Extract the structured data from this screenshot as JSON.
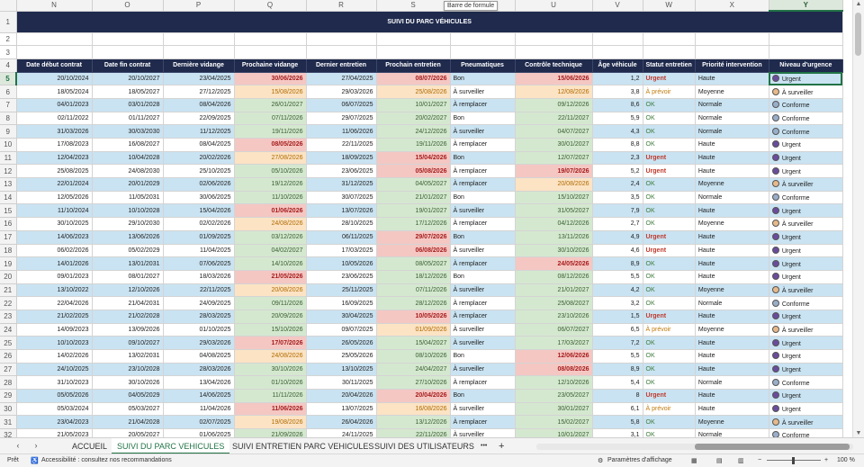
{
  "formula_tooltip": "Barre de formule",
  "columns": [
    "N",
    "O",
    "P",
    "Q",
    "R",
    "S",
    "T",
    "U",
    "V",
    "W",
    "X",
    "Y"
  ],
  "selected_column": "Y",
  "row_numbers": [
    1,
    2,
    3,
    4,
    5,
    6,
    7,
    8,
    9,
    10,
    11,
    12,
    13,
    14,
    15,
    16,
    17,
    18,
    19,
    20,
    21,
    22,
    23,
    24,
    25,
    26,
    27,
    28,
    29,
    30,
    31,
    32
  ],
  "selected_row": 5,
  "title": "SUIVI DU PARC VÉHICULES",
  "headers": [
    "Date début contrat",
    "Date fin contrat",
    "Dernière vidange",
    "Prochaine vidange",
    "Dernier entretien",
    "Prochain entretien",
    "Pneumatiques",
    "Contrôle technique",
    "Âge véhicule",
    "Statut entretien",
    "Priorité intervention",
    "Niveau d'urgence"
  ],
  "rows": [
    [
      "20/10/2024",
      "20/10/2027",
      "23/04/2025",
      "30/06/2026",
      "27/04/2025",
      "08/07/2026",
      "Bon",
      "15/06/2026",
      "1,2",
      "Urgent",
      "Haute",
      "Urgent"
    ],
    [
      "18/05/2024",
      "18/05/2027",
      "27/12/2025",
      "15/08/2026",
      "29/03/2026",
      "25/08/2026",
      "À surveiller",
      "12/08/2026",
      "3,8",
      "À prévoir",
      "Moyenne",
      "À surveiller"
    ],
    [
      "04/01/2023",
      "03/01/2028",
      "08/04/2026",
      "26/01/2027",
      "06/07/2025",
      "10/01/2027",
      "À remplacer",
      "09/12/2026",
      "8,6",
      "OK",
      "Normale",
      "Conforme"
    ],
    [
      "02/11/2022",
      "01/11/2027",
      "22/09/2025",
      "07/11/2026",
      "29/07/2025",
      "20/02/2027",
      "Bon",
      "22/11/2027",
      "5,9",
      "OK",
      "Normale",
      "Conforme"
    ],
    [
      "31/03/2026",
      "30/03/2030",
      "11/12/2025",
      "19/11/2026",
      "11/06/2026",
      "24/12/2026",
      "À surveiller",
      "04/07/2027",
      "4,3",
      "OK",
      "Normale",
      "Conforme"
    ],
    [
      "17/08/2023",
      "16/08/2027",
      "08/04/2025",
      "08/05/2026",
      "22/11/2025",
      "19/11/2026",
      "À remplacer",
      "30/01/2027",
      "8,8",
      "OK",
      "Haute",
      "Urgent"
    ],
    [
      "12/04/2023",
      "10/04/2028",
      "20/02/2026",
      "27/08/2026",
      "18/09/2025",
      "15/04/2026",
      "Bon",
      "12/07/2027",
      "2,3",
      "Urgent",
      "Haute",
      "Urgent"
    ],
    [
      "25/08/2025",
      "24/08/2030",
      "25/10/2025",
      "05/10/2026",
      "23/06/2025",
      "05/08/2026",
      "À remplacer",
      "19/07/2026",
      "5,2",
      "Urgent",
      "Haute",
      "Urgent"
    ],
    [
      "22/01/2024",
      "20/01/2029",
      "02/06/2026",
      "19/12/2026",
      "31/12/2025",
      "04/05/2027",
      "À remplacer",
      "20/08/2026",
      "2,4",
      "OK",
      "Moyenne",
      "À surveiller"
    ],
    [
      "12/05/2026",
      "11/05/2031",
      "30/06/2025",
      "11/10/2026",
      "30/07/2025",
      "21/01/2027",
      "Bon",
      "15/10/2027",
      "3,5",
      "OK",
      "Normale",
      "Conforme"
    ],
    [
      "11/10/2024",
      "10/10/2028",
      "15/04/2026",
      "01/06/2026",
      "13/07/2026",
      "19/01/2027",
      "À surveiller",
      "31/05/2027",
      "7,9",
      "OK",
      "Haute",
      "Urgent"
    ],
    [
      "30/10/2025",
      "29/10/2030",
      "02/02/2026",
      "24/08/2026",
      "28/10/2025",
      "17/12/2026",
      "À remplacer",
      "04/12/2026",
      "2,7",
      "OK",
      "Moyenne",
      "À surveiller"
    ],
    [
      "14/06/2023",
      "13/06/2026",
      "01/09/2025",
      "03/12/2026",
      "06/11/2025",
      "29/07/2026",
      "Bon",
      "13/11/2026",
      "4,9",
      "Urgent",
      "Haute",
      "Urgent"
    ],
    [
      "06/02/2026",
      "05/02/2029",
      "11/04/2025",
      "04/02/2027",
      "17/03/2025",
      "06/08/2026",
      "À surveiller",
      "30/10/2026",
      "4,6",
      "Urgent",
      "Haute",
      "Urgent"
    ],
    [
      "14/01/2026",
      "13/01/2031",
      "07/06/2025",
      "14/10/2026",
      "10/05/2026",
      "08/05/2027",
      "À remplacer",
      "24/05/2026",
      "8,9",
      "OK",
      "Haute",
      "Urgent"
    ],
    [
      "09/01/2023",
      "08/01/2027",
      "18/03/2026",
      "21/05/2026",
      "23/06/2025",
      "18/12/2026",
      "Bon",
      "08/12/2026",
      "5,5",
      "OK",
      "Haute",
      "Urgent"
    ],
    [
      "13/10/2022",
      "12/10/2026",
      "22/11/2025",
      "20/08/2026",
      "25/11/2025",
      "07/11/2026",
      "À surveiller",
      "21/01/2027",
      "4,2",
      "OK",
      "Moyenne",
      "À surveiller"
    ],
    [
      "22/04/2026",
      "21/04/2031",
      "24/09/2025",
      "09/11/2026",
      "16/09/2025",
      "28/12/2026",
      "À remplacer",
      "25/08/2027",
      "3,2",
      "OK",
      "Normale",
      "Conforme"
    ],
    [
      "21/02/2025",
      "21/02/2028",
      "28/03/2025",
      "20/09/2026",
      "30/04/2025",
      "10/05/2026",
      "À remplacer",
      "23/10/2026",
      "1,5",
      "Urgent",
      "Haute",
      "Urgent"
    ],
    [
      "14/09/2023",
      "13/09/2026",
      "01/10/2025",
      "15/10/2026",
      "09/07/2025",
      "01/09/2026",
      "À surveiller",
      "06/07/2027",
      "6,5",
      "À prévoir",
      "Moyenne",
      "À surveiller"
    ],
    [
      "10/10/2023",
      "09/10/2027",
      "29/03/2026",
      "17/07/2026",
      "26/05/2026",
      "15/04/2027",
      "À surveiller",
      "17/03/2027",
      "7,2",
      "OK",
      "Haute",
      "Urgent"
    ],
    [
      "14/02/2026",
      "13/02/2031",
      "04/08/2025",
      "24/08/2026",
      "25/05/2026",
      "08/10/2026",
      "Bon",
      "12/06/2026",
      "5,5",
      "OK",
      "Haute",
      "Urgent"
    ],
    [
      "24/10/2025",
      "23/10/2028",
      "28/03/2026",
      "30/10/2026",
      "13/10/2025",
      "24/04/2027",
      "À surveiller",
      "08/08/2026",
      "8,9",
      "OK",
      "Haute",
      "Urgent"
    ],
    [
      "31/10/2023",
      "30/10/2026",
      "13/04/2026",
      "01/10/2026",
      "30/11/2025",
      "27/10/2026",
      "À remplacer",
      "12/10/2026",
      "5,4",
      "OK",
      "Normale",
      "Conforme"
    ],
    [
      "05/05/2026",
      "04/05/2029",
      "14/06/2025",
      "11/11/2026",
      "20/04/2026",
      "20/04/2026",
      "Bon",
      "23/05/2027",
      "8",
      "Urgent",
      "Haute",
      "Urgent"
    ],
    [
      "05/03/2024",
      "05/03/2027",
      "11/04/2026",
      "11/06/2026",
      "13/07/2025",
      "16/08/2026",
      "À surveiller",
      "30/01/2027",
      "6,1",
      "À prévoir",
      "Haute",
      "Urgent"
    ],
    [
      "23/04/2023",
      "21/04/2028",
      "02/07/2025",
      "19/08/2026",
      "26/04/2026",
      "13/12/2026",
      "À remplacer",
      "15/02/2027",
      "5,8",
      "OK",
      "Moyenne",
      "À surveiller"
    ],
    [
      "21/05/2023",
      "20/05/2027",
      "01/06/2025",
      "21/09/2026",
      "24/11/2025",
      "22/11/2026",
      "À surveiller",
      "10/01/2027",
      "3,1",
      "OK",
      "Normale",
      "Conforme"
    ]
  ],
  "cell_colors": {
    "Q": [
      "red",
      "orange",
      "green",
      "green",
      "green",
      "red",
      "orange",
      "green",
      "green",
      "green",
      "red",
      "orange",
      "green",
      "green",
      "green",
      "red",
      "orange",
      "green",
      "green",
      "green",
      "red",
      "orange",
      "green",
      "green",
      "green",
      "red",
      "orange",
      "green"
    ],
    "S": [
      "red",
      "orange",
      "green",
      "green",
      "green",
      "green",
      "red",
      "red",
      "green",
      "green",
      "green",
      "green",
      "red",
      "red",
      "green",
      "green",
      "green",
      "green",
      "red",
      "orange",
      "green",
      "green",
      "green",
      "green",
      "red",
      "orange",
      "green",
      "green"
    ],
    "U": [
      "red",
      "orange",
      "green",
      "green",
      "green",
      "green",
      "green",
      "red",
      "orange",
      "green",
      "green",
      "green",
      "green",
      "green",
      "red",
      "green",
      "green",
      "green",
      "green",
      "green",
      "green",
      "red",
      "red",
      "green",
      "green",
      "green",
      "green",
      "green"
    ]
  },
  "tabs": [
    "ACCUEIL",
    "SUIVI DU PARC VEHICULES",
    "SUIVI ENTRETIEN PARC VEHICULES",
    "SUIVI DES UTILISATEURS"
  ],
  "active_tab": "SUIVI DU PARC VEHICULES",
  "tab_more": "•••",
  "tab_add": "+",
  "status": {
    "ready": "Prêt",
    "accessibility": "Accessibilité : consultez nos recommandations",
    "display_settings": "Paramètres d'affichage",
    "zoom": "100 %",
    "zoom_minus": "−",
    "zoom_plus": "+"
  }
}
